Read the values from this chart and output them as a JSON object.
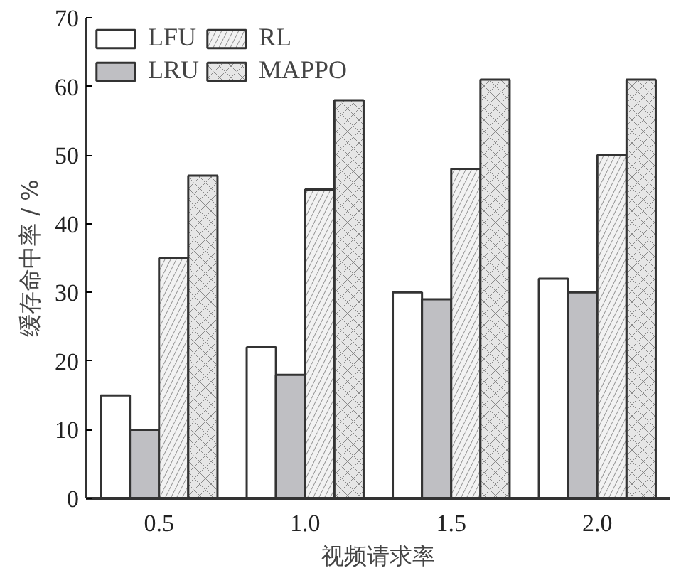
{
  "chart_data": {
    "type": "bar",
    "xlabel": "视频请求率",
    "ylabel": "缓存命中率 / %",
    "categories": [
      "0.5",
      "1.0",
      "1.5",
      "2.0"
    ],
    "series": [
      {
        "name": "LFU",
        "color": "#ffffff",
        "values": [
          15,
          22,
          30,
          32
        ]
      },
      {
        "name": "LRU",
        "color": "#bfbfc3",
        "values": [
          10,
          18,
          29,
          30
        ]
      },
      {
        "name": "RL",
        "color": "#f2f2f2",
        "values": [
          35,
          45,
          48,
          50
        ]
      },
      {
        "name": "MAPPO",
        "color": "#e6e6e6",
        "values": [
          47,
          58,
          61,
          61
        ]
      }
    ],
    "ylim": [
      0,
      70
    ],
    "yticks": [
      0,
      10,
      20,
      30,
      40,
      50,
      60,
      70
    ],
    "grid": false,
    "legend": "top left"
  }
}
